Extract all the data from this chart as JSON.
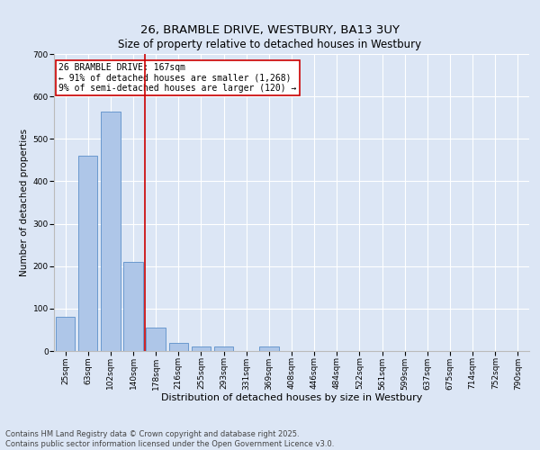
{
  "title": "26, BRAMBLE DRIVE, WESTBURY, BA13 3UY",
  "subtitle": "Size of property relative to detached houses in Westbury",
  "xlabel": "Distribution of detached houses by size in Westbury",
  "ylabel": "Number of detached properties",
  "categories": [
    "25sqm",
    "63sqm",
    "102sqm",
    "140sqm",
    "178sqm",
    "216sqm",
    "255sqm",
    "293sqm",
    "331sqm",
    "369sqm",
    "408sqm",
    "446sqm",
    "484sqm",
    "522sqm",
    "561sqm",
    "599sqm",
    "637sqm",
    "675sqm",
    "714sqm",
    "752sqm",
    "790sqm"
  ],
  "values": [
    80,
    460,
    565,
    210,
    55,
    20,
    10,
    10,
    0,
    10,
    0,
    0,
    0,
    0,
    0,
    0,
    0,
    0,
    0,
    0,
    0
  ],
  "bar_color": "#aec6e8",
  "bar_edge_color": "#5b8fc9",
  "bar_width": 0.85,
  "red_line_x": 3.5,
  "red_line_color": "#cc0000",
  "annotation_text": "26 BRAMBLE DRIVE: 167sqm\n← 91% of detached houses are smaller (1,268)\n9% of semi-detached houses are larger (120) →",
  "annotation_box_color": "#ffffff",
  "annotation_edge_color": "#cc0000",
  "ylim": [
    0,
    700
  ],
  "yticks": [
    0,
    100,
    200,
    300,
    400,
    500,
    600,
    700
  ],
  "bg_color": "#dce6f5",
  "plot_bg_color": "#dce6f5",
  "grid_color": "#ffffff",
  "footer_line1": "Contains HM Land Registry data © Crown copyright and database right 2025.",
  "footer_line2": "Contains public sector information licensed under the Open Government Licence v3.0.",
  "title_fontsize": 9.5,
  "subtitle_fontsize": 8.5,
  "xlabel_fontsize": 8,
  "ylabel_fontsize": 7.5,
  "tick_fontsize": 6.5,
  "footer_fontsize": 6,
  "annotation_fontsize": 7
}
